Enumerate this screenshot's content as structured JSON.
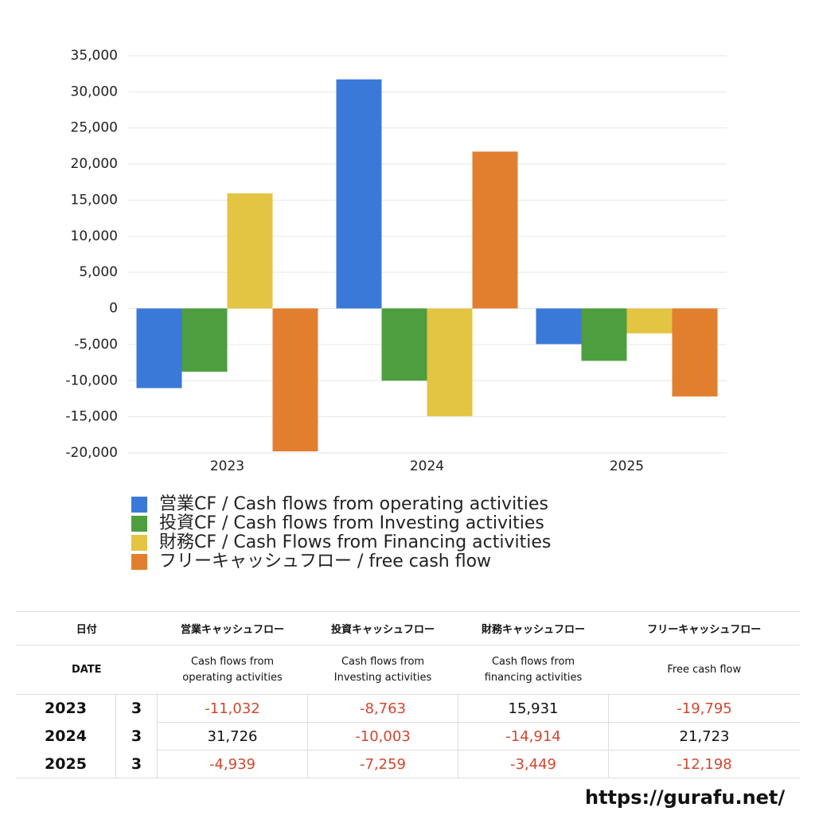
{
  "chart_data": {
    "type": "bar",
    "categories": [
      "2023",
      "2024",
      "2025"
    ],
    "series": [
      {
        "name": "営業CF / Cash flows from operating activities",
        "color": "#3b79d9",
        "values": [
          -11032,
          31726,
          -4939
        ]
      },
      {
        "name": "投資CF / Cash flows from Investing activities",
        "color": "#4d9e3f",
        "values": [
          -8763,
          -10003,
          -7259
        ]
      },
      {
        "name": "財務CF / Cash Flows from Financing activities",
        "color": "#e3c443",
        "values": [
          15931,
          -14914,
          -3449
        ]
      },
      {
        "name": "フリーキャッシュフロー / free cash flow",
        "color": "#e27f2f",
        "values": [
          -19795,
          21723,
          -12198
        ]
      }
    ],
    "ylim": [
      -20000,
      35000
    ],
    "yticks": [
      {
        "value": -20000,
        "label": "-20,000"
      },
      {
        "value": -15000,
        "label": "-15,000"
      },
      {
        "value": -10000,
        "label": "-10,000"
      },
      {
        "value": -5000,
        "label": "-5,000"
      },
      0,
      {
        "value": 5000,
        "label": "5,000"
      },
      {
        "value": 10000,
        "label": "10,000"
      },
      {
        "value": 15000,
        "label": "15,000"
      },
      {
        "value": 20000,
        "label": "20,000"
      },
      {
        "value": 25000,
        "label": "25,000"
      },
      {
        "value": 30000,
        "label": "30,000"
      },
      {
        "value": 35000,
        "label": "35,000"
      }
    ],
    "grid": true
  },
  "table": {
    "headers_ja": [
      "日付",
      "営業キャッシュフロー",
      "投資キャッシュフロー",
      "財務キャッシュフロー",
      "フリーキャッシュフロー"
    ],
    "headers_en": [
      "DATE",
      "Cash flows from\noperating activities",
      "Cash flows from\nInvesting activities",
      "Cash flows from\nfinancing activities",
      "Free cash flow"
    ],
    "rows": [
      [
        "2023",
        "3",
        "-11,032",
        "-8,763",
        "15,931",
        "-19,795"
      ],
      [
        "2024",
        "3",
        "31,726",
        "-10,003",
        "-14,914",
        "21,723"
      ],
      [
        "2025",
        "3",
        "-4,939",
        "-7,259",
        "-3,449",
        "-12,198"
      ]
    ]
  },
  "footer": "https://gurafu.net/"
}
